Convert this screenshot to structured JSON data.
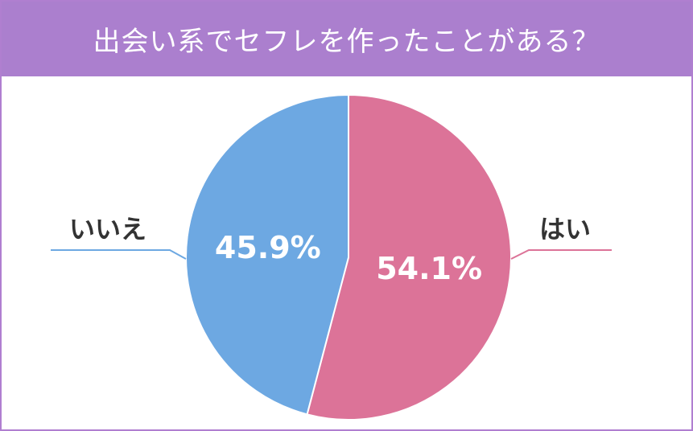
{
  "header": {
    "title": "出会い系でセフレを作ったことがある？"
  },
  "colors": {
    "title_bar": "#ab7fce",
    "border": "#b07fd0",
    "yes": "#dc7398",
    "no": "#6da8e2",
    "label_text": "#333333"
  },
  "chart_data": {
    "type": "pie",
    "title": "出会い系でセフレを作ったことがある？",
    "slices": [
      {
        "label": "はい",
        "value": 54.1,
        "value_label": "54.1%",
        "color": "#dc7398"
      },
      {
        "label": "いいえ",
        "value": 45.9,
        "value_label": "45.9%",
        "color": "#6da8e2"
      }
    ],
    "start": "12 o'clock",
    "direction": "clockwise"
  }
}
